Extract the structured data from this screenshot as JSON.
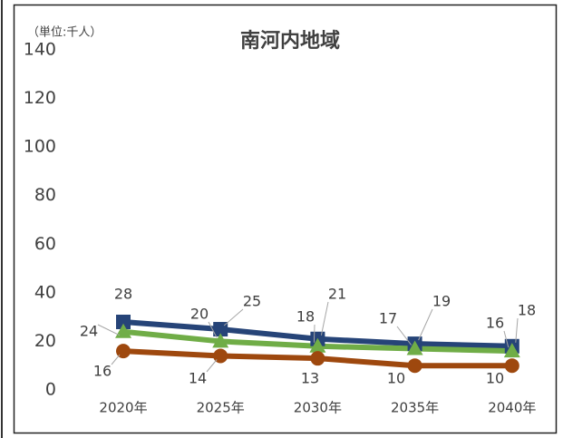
{
  "chart_data": {
    "type": "line",
    "title": "南河内地域",
    "unit_label": "（単位:千人）",
    "categories": [
      "2020年",
      "2025年",
      "2030年",
      "2035年",
      "2040年"
    ],
    "series": [
      {
        "color": "#264478",
        "marker": "square",
        "values": [
          28,
          25,
          21,
          19,
          18
        ]
      },
      {
        "color": "#70ad47",
        "marker": "triangle",
        "values": [
          24,
          20,
          18,
          17,
          16
        ]
      },
      {
        "color": "#9e480e",
        "marker": "circle",
        "values": [
          16,
          14,
          13,
          10,
          10
        ]
      }
    ],
    "ylim": [
      0,
      140
    ],
    "yticks": [
      0,
      20,
      40,
      60,
      80,
      100,
      120,
      140
    ],
    "grid": false
  }
}
